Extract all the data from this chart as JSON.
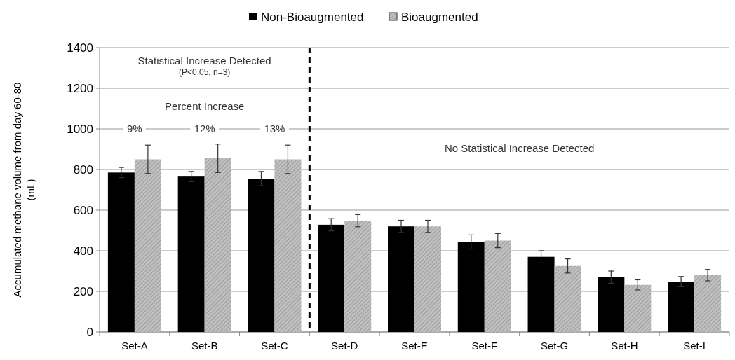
{
  "chart_data": {
    "type": "bar",
    "ylabel": "Accumulated methane volume from day 60-80 (mL)",
    "categories": [
      "Set-A",
      "Set-B",
      "Set-C",
      "Set-D",
      "Set-E",
      "Set-F",
      "Set-G",
      "Set-H",
      "Set-I"
    ],
    "series": [
      {
        "name": "Non-Bioaugmented",
        "color": "#000000",
        "values": [
          785,
          765,
          755,
          528,
          520,
          443,
          370,
          270,
          248
        ],
        "errors": [
          25,
          25,
          35,
          30,
          30,
          35,
          30,
          30,
          25
        ]
      },
      {
        "name": "Bioaugmented",
        "color": "#c0c0c0",
        "values": [
          850,
          855,
          850,
          548,
          520,
          450,
          325,
          232,
          280
        ],
        "errors": [
          70,
          70,
          70,
          30,
          30,
          35,
          35,
          25,
          28
        ]
      }
    ],
    "ylim": [
      0,
      1400
    ],
    "yticks": [
      0,
      200,
      400,
      600,
      800,
      1000,
      1200,
      1400
    ],
    "grid": "y",
    "legend": "top",
    "annotations": [
      "Statistical Increase Detected",
      "(P<0.05, n=3)",
      "Percent Increase",
      "No Statistical Increase Detected",
      {
        "text": "9%",
        "x": "Set-A",
        "y": 1000
      },
      {
        "text": "12%",
        "x": "Set-B",
        "y": 1000
      },
      {
        "text": "13%",
        "x": "Set-C",
        "y": 1000
      }
    ]
  }
}
